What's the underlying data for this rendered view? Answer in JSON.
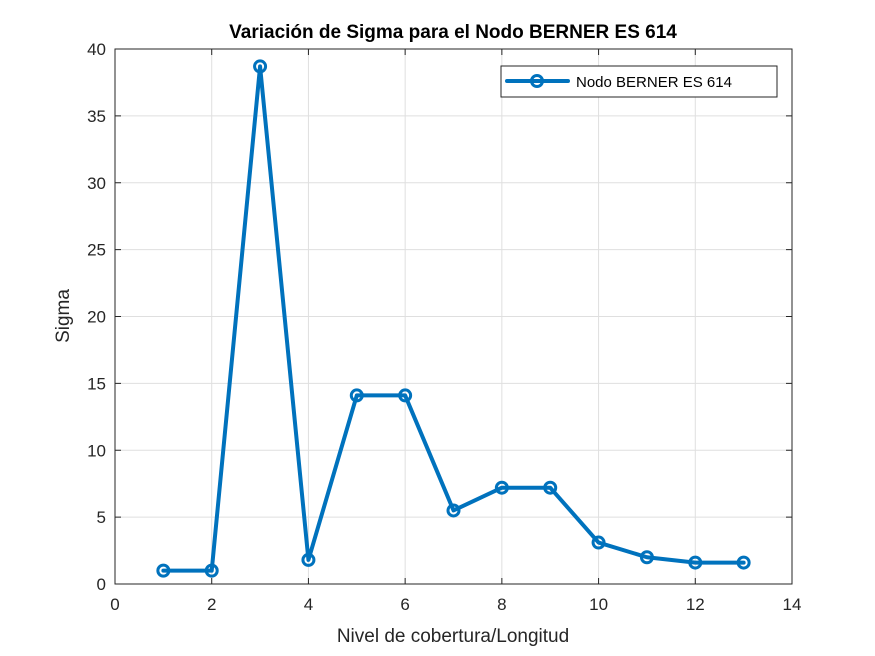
{
  "chart_data": {
    "type": "line",
    "title": "Variación de Sigma para el Nodo BERNER ES 614",
    "xlabel": "Nivel de cobertura/Longitud",
    "ylabel": "Sigma",
    "xlim": [
      0,
      14
    ],
    "ylim": [
      0,
      40
    ],
    "xticks": [
      0,
      2,
      4,
      6,
      8,
      10,
      12,
      14
    ],
    "yticks": [
      0,
      5,
      10,
      15,
      20,
      25,
      30,
      35,
      40
    ],
    "grid": true,
    "legend_position": "top-right",
    "series": [
      {
        "name": "Nodo BERNER ES 614",
        "color": "#0072BD",
        "marker": "circle",
        "x": [
          1,
          2,
          3,
          4,
          5,
          6,
          7,
          8,
          9,
          10,
          11,
          12,
          13
        ],
        "y": [
          1.0,
          1.0,
          38.7,
          1.8,
          14.1,
          14.1,
          5.5,
          7.2,
          7.2,
          3.1,
          2.0,
          1.6,
          1.6
        ]
      }
    ]
  }
}
